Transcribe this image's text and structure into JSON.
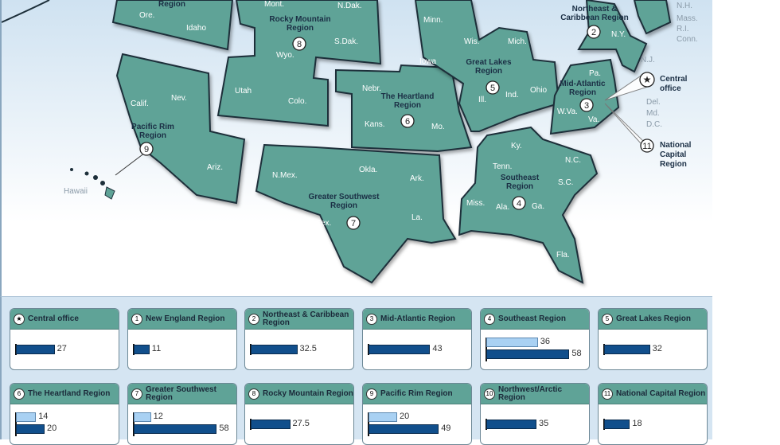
{
  "map": {
    "regions": [
      {
        "id": "northwest",
        "label": "Region"
      },
      {
        "id": "rocky",
        "label": "Rocky Mountain Region",
        "num": "8"
      },
      {
        "id": "pacific",
        "label": "Pacific Rim Region",
        "num": "9"
      },
      {
        "id": "heartland",
        "label": "The Heartland Region",
        "num": "6"
      },
      {
        "id": "southwest",
        "label": "Greater Southwest Region",
        "num": "7"
      },
      {
        "id": "greatlakes",
        "label": "Great Lakes Region",
        "num": "5"
      },
      {
        "id": "southeast",
        "label": "Southeast Region",
        "num": "4"
      },
      {
        "id": "northeast",
        "label": "Northeast & Caribbean Region",
        "num": "2"
      },
      {
        "id": "midatlantic",
        "label": "Mid-Atlantic Region",
        "num": "3"
      },
      {
        "id": "natcap",
        "label": "National Capital Region",
        "num": "11"
      }
    ],
    "central_office": "Central office",
    "states": [
      "Ore.",
      "Idaho",
      "Mont.",
      "N.Dak.",
      "S.Dak.",
      "Wyo.",
      "Utah",
      "Colo.",
      "Calif.",
      "Nev.",
      "Ariz.",
      "Nebr.",
      "Iowa",
      "Kans.",
      "Mo.",
      "N.Mex.",
      "Okla.",
      "Ark.",
      "Tex.",
      "La.",
      "Minn.",
      "Wis.",
      "Mich.",
      "Ill.",
      "Ind.",
      "Ohio",
      "Ky.",
      "Tenn.",
      "N.C.",
      "S.C.",
      "Miss.",
      "Ala.",
      "Ga.",
      "Fla.",
      "N.Y.",
      "Pa.",
      "W.Va.",
      "Va."
    ],
    "outside_labels": [
      "N.H.",
      "Mass.",
      "R.I.",
      "Conn.",
      "N.J.",
      "Del.",
      "Md.",
      "D.C.",
      "Hawaii"
    ]
  },
  "cards": [
    {
      "num": "★",
      "title": "Central office",
      "values": [
        27
      ]
    },
    {
      "num": "1",
      "title": "New England Region",
      "values": [
        11
      ]
    },
    {
      "num": "2",
      "title": "Northeast & Caribbean Region",
      "values": [
        32.5
      ]
    },
    {
      "num": "3",
      "title": "Mid-Atlantic Region",
      "values": [
        43
      ]
    },
    {
      "num": "4",
      "title": "Southeast Region",
      "values": [
        36,
        58
      ]
    },
    {
      "num": "5",
      "title": "Great Lakes Region",
      "values": [
        32
      ]
    },
    {
      "num": "6",
      "title": "The Heartland Region",
      "values": [
        14,
        20
      ]
    },
    {
      "num": "7",
      "title": "Greater Southwest Region",
      "values": [
        12,
        58
      ]
    },
    {
      "num": "8",
      "title": "Rocky Mountain Region",
      "values": [
        27.5
      ]
    },
    {
      "num": "9",
      "title": "Pacific Rim Region",
      "values": [
        20,
        49
      ]
    },
    {
      "num": "10",
      "title": "Northwest/Arctic Region",
      "values": [
        35
      ]
    },
    {
      "num": "11",
      "title": "National Capital Region",
      "values": [
        18
      ]
    }
  ],
  "colors": {
    "region": "#5fa397",
    "bar_dark": "#114f8c",
    "bar_light": "#a9d1f3"
  }
}
